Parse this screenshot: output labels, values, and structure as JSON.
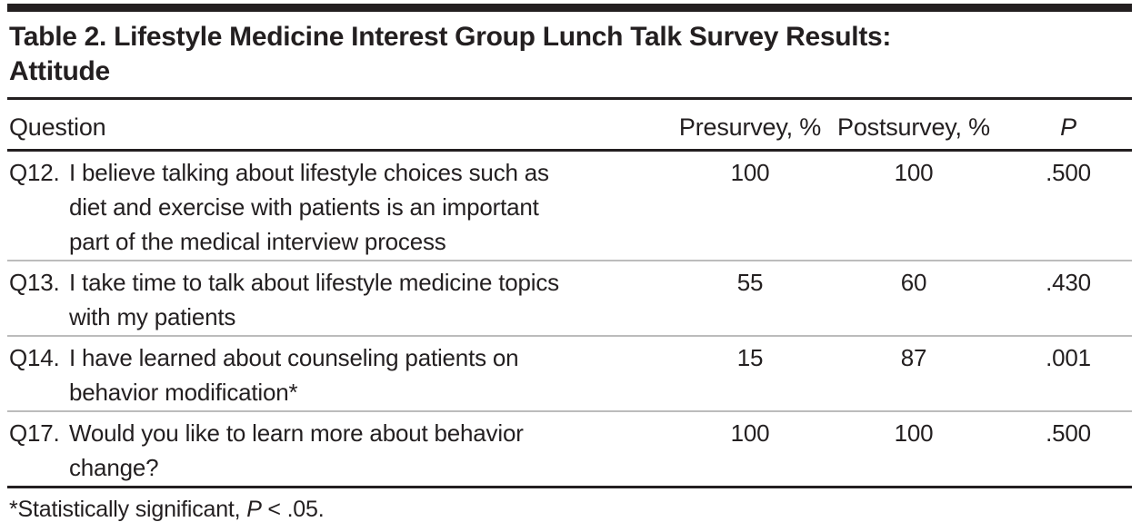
{
  "table": {
    "title": "Table 2. Lifestyle Medicine Interest Group Lunch Talk Survey Results:\nAttitude",
    "columns": {
      "question": "Question",
      "presurvey": "Presurvey, %",
      "postsurvey": "Postsurvey, %",
      "p": "P"
    },
    "rows": [
      {
        "qnum": "Q12.",
        "question": "I believe talking about lifestyle choices such as\ndiet and exercise with patients is an important\npart of the medical interview process",
        "presurvey": "100",
        "postsurvey": "100",
        "p": ".500"
      },
      {
        "qnum": "Q13.",
        "question": "I take time to talk about lifestyle medicine topics\nwith my patients",
        "presurvey": "55",
        "postsurvey": "60",
        "p": ".430"
      },
      {
        "qnum": "Q14.",
        "question": "I have learned about counseling patients on\nbehavior modification*",
        "presurvey": "15",
        "postsurvey": "87",
        "p": ".001"
      },
      {
        "qnum": "Q17.",
        "question": "Would you like to learn more about behavior\nchange?",
        "presurvey": "100",
        "postsurvey": "100",
        "p": ".500"
      }
    ],
    "footnote": {
      "before": "*Statistically significant, ",
      "p_symbol": "P",
      "after": " < .05."
    },
    "colors": {
      "text": "#231f20",
      "rule_dark": "#231f20",
      "rule_light": "#bcbcbc",
      "background": "#ffffff"
    }
  }
}
